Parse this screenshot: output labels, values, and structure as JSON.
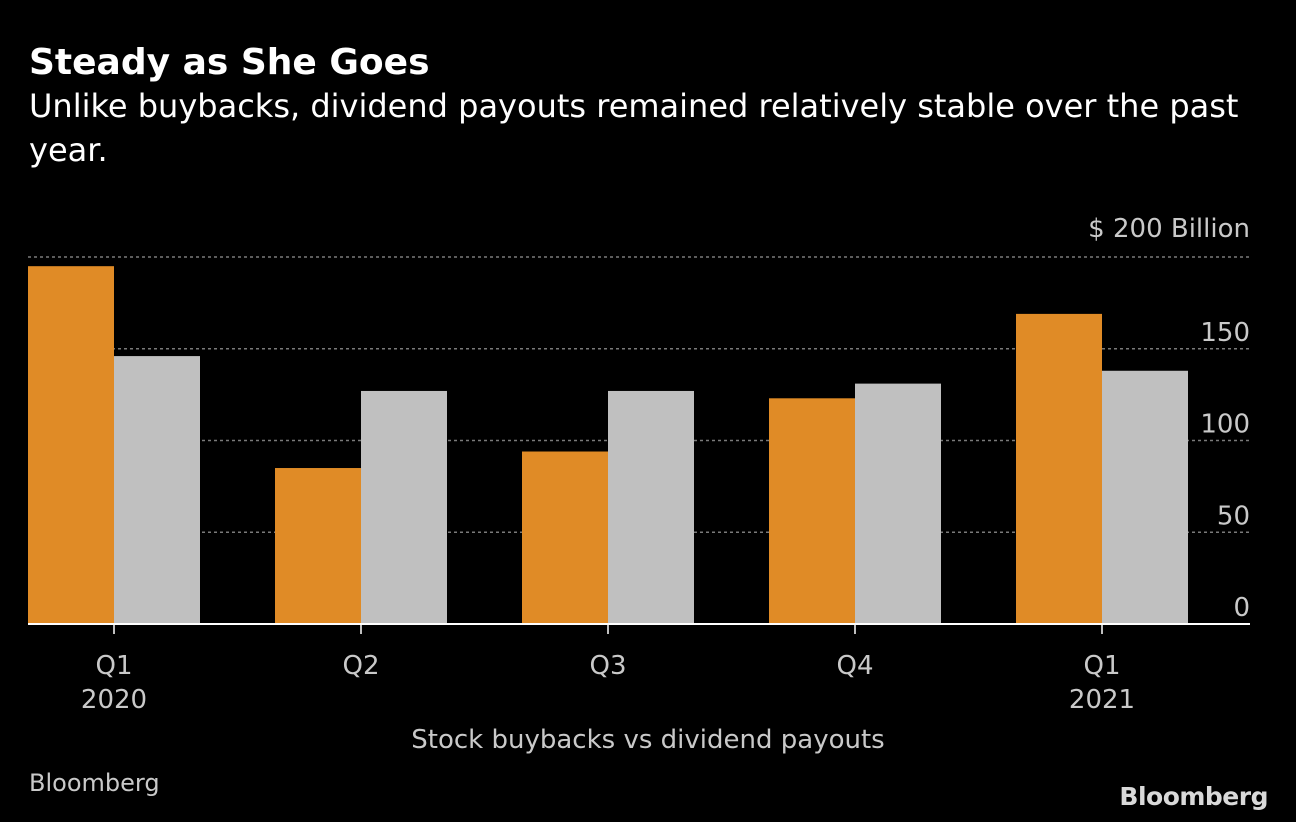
{
  "header": {
    "title": "Steady as She Goes",
    "subtitle": "Unlike buybacks, dividend payouts remained relatively stable over the past year."
  },
  "footer": {
    "source": "Bloomberg",
    "logo": "Bloomberg"
  },
  "colors": {
    "background": "#000000",
    "buybacks": "#e08b26",
    "dividends": "#c0c0c0",
    "grid": "#7a7a7a",
    "text": "#c9c9c9"
  },
  "chart_data": {
    "type": "bar",
    "title": "Steady as She Goes",
    "subtitle": "Unlike buybacks, dividend payouts remained relatively stable over the past year.",
    "categories": [
      "Q1",
      "Q2",
      "Q3",
      "Q4",
      "Q1"
    ],
    "category_years": [
      "2020",
      "",
      "",
      "",
      "2021"
    ],
    "series": [
      {
        "values": [
          195,
          85,
          94,
          123,
          169
        ],
        "color": "#e08b26"
      },
      {
        "values": [
          146,
          127,
          127,
          131,
          138
        ],
        "color": "#c0c0c0"
      }
    ],
    "xlabel": "Stock buybacks vs dividend payouts",
    "ylabel": "",
    "unit_label": "$ 200  Billion",
    "yticks": [
      0,
      50,
      100,
      150,
      200
    ],
    "ytick_labels": [
      "0",
      "50",
      "100",
      "150",
      ""
    ],
    "ylim": [
      0,
      200
    ],
    "y_axis_position": "right",
    "grid": true,
    "grid_style": "dotted",
    "legend": "none"
  }
}
